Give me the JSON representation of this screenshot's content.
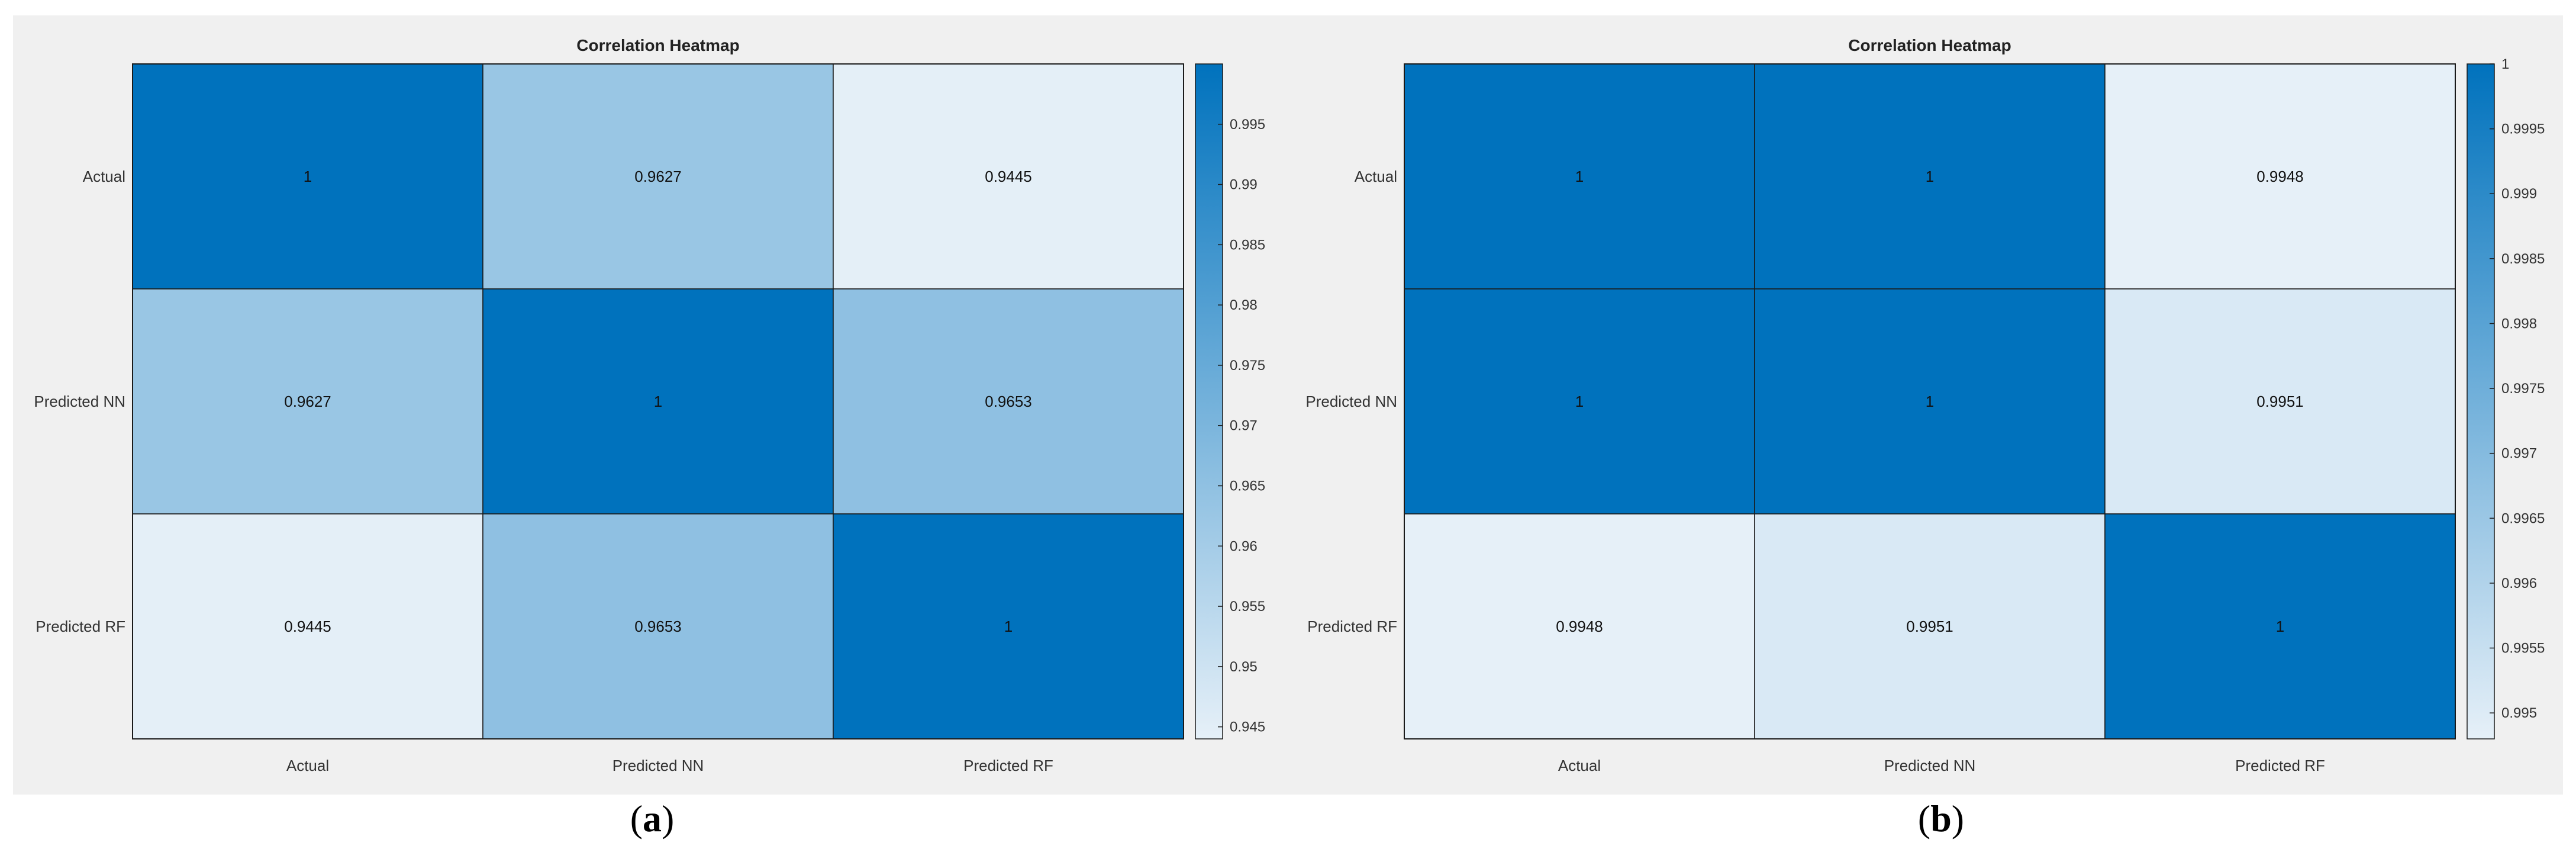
{
  "figures": [
    {
      "caption_open": "(",
      "caption_letter": "a",
      "caption_close": ")"
    },
    {
      "caption_open": "(",
      "caption_letter": "b",
      "caption_close": ")"
    }
  ],
  "chart_data": [
    {
      "type": "heatmap",
      "title": "Correlation Heatmap",
      "xlabels": [
        "Actual",
        "Predicted NN",
        "Predicted RF"
      ],
      "ylabels": [
        "Actual",
        "Predicted NN",
        "Predicted RF"
      ],
      "values": [
        [
          1,
          0.9627,
          0.9445
        ],
        [
          0.9627,
          1,
          0.9653
        ],
        [
          0.9445,
          0.9653,
          1
        ]
      ],
      "cell_labels": [
        [
          "1",
          "0.9627",
          "0.9445"
        ],
        [
          "0.9627",
          "1",
          "0.9653"
        ],
        [
          "0.9445",
          "0.9653",
          "1"
        ]
      ],
      "colorbar": {
        "min": 0.944,
        "max": 1.0,
        "ticks": [
          0.945,
          0.95,
          0.955,
          0.96,
          0.965,
          0.97,
          0.975,
          0.98,
          0.985,
          0.99,
          0.995
        ],
        "tick_labels": [
          "0.945",
          "0.95",
          "0.955",
          "0.96",
          "0.965",
          "0.97",
          "0.975",
          "0.98",
          "0.985",
          "0.99",
          "0.995"
        ]
      },
      "colors": {
        "low": "#e6f0f8",
        "high": "#0072bd"
      }
    },
    {
      "type": "heatmap",
      "title": "Correlation Heatmap",
      "xlabels": [
        "Actual",
        "Predicted NN",
        "Predicted RF"
      ],
      "ylabels": [
        "Actual",
        "Predicted NN",
        "Predicted RF"
      ],
      "values": [
        [
          1,
          1,
          0.9948
        ],
        [
          1,
          1,
          0.9951
        ],
        [
          0.9948,
          0.9951,
          1
        ]
      ],
      "cell_labels": [
        [
          "1",
          "1",
          "0.9948"
        ],
        [
          "1",
          "1",
          "0.9951"
        ],
        [
          "0.9948",
          "0.9951",
          "1"
        ]
      ],
      "colorbar": {
        "min": 0.9948,
        "max": 1.0,
        "ticks": [
          0.995,
          0.9955,
          0.996,
          0.9965,
          0.997,
          0.9975,
          0.998,
          0.9985,
          0.999,
          0.9995,
          1
        ],
        "tick_labels": [
          "0.995",
          "0.9955",
          "0.996",
          "0.9965",
          "0.997",
          "0.9975",
          "0.998",
          "0.9985",
          "0.999",
          "0.9995",
          "1"
        ]
      },
      "colors": {
        "low": "#e6f0f8",
        "high": "#0072bd"
      }
    }
  ]
}
